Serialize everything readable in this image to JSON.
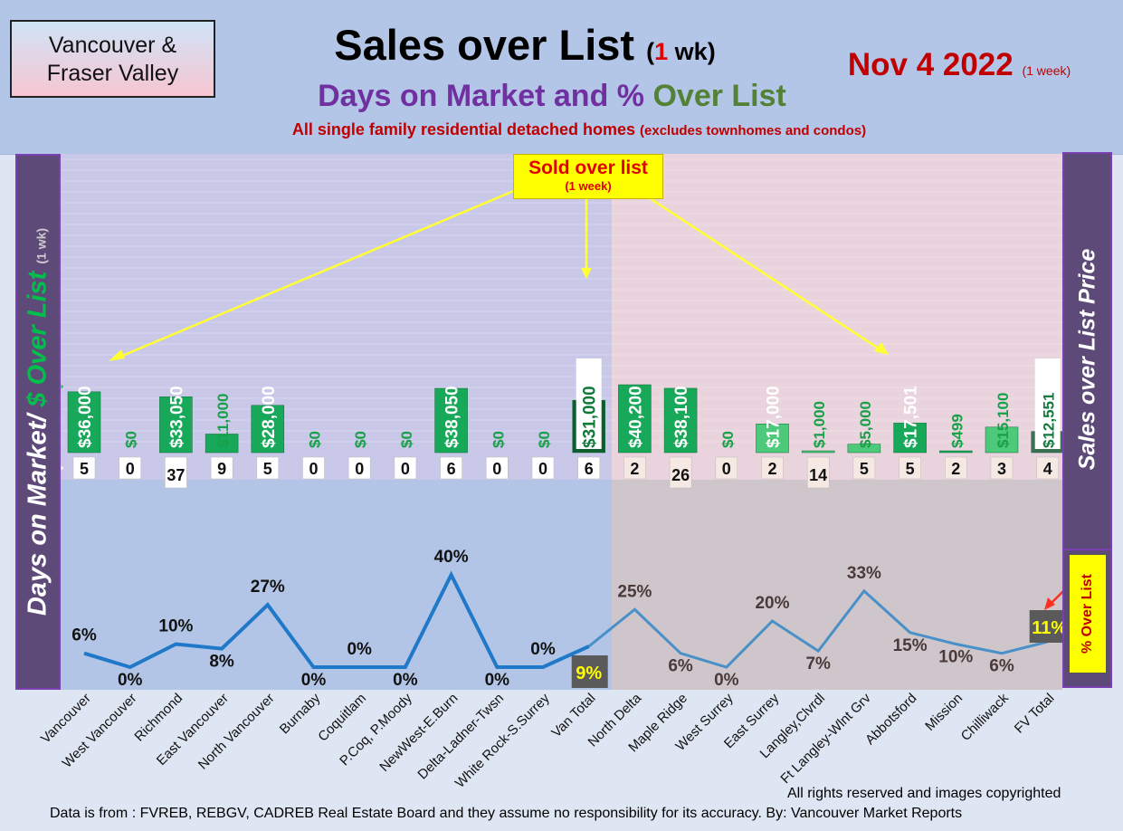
{
  "header": {
    "region_line1": "Vancouver &",
    "region_line2": "Fraser Valley",
    "title_main": "Sales over List ",
    "title_paren_open": "(",
    "title_num": "1",
    "title_paren_close": " wk)",
    "subtitle_part1": "Days on Market and % ",
    "subtitle_part2": "Over List",
    "subtitle2_main": "All single family residential detached homes ",
    "subtitle2_small": "(excludes townhomes and condos)",
    "date": "Nov 4  2022 ",
    "date_small": "(1 week)"
  },
  "side": {
    "left_part1": "Days on Market/ ",
    "left_part2": "$ Over List ",
    "left_small": "(1 wk)",
    "right_label": "Sales over List Price",
    "pct_label": "% Over List"
  },
  "callout": {
    "line1": "Sold over list",
    "line2": "(1 week)"
  },
  "footer": {
    "rights": "All rights reserved and  images copyrighted",
    "source": "Data is from : FVREB, REBGV, CADREB Real Estate Board and they assume no responsibility for its accuracy. By: Vancouver Market Reports"
  },
  "colors": {
    "bar_green": "#18a85a",
    "bar_dark": "#0f5c2e",
    "bar_fv_light": "#4cc97a",
    "line_van": "#1f78c8",
    "line_fv": "#4a90c8",
    "van_bg": "#c9c8e8",
    "fv_bg": "#e9d3dd"
  },
  "chart_data": {
    "type": "bar+line",
    "categories": [
      "Vancouver",
      "West Vancouver",
      "Richmond",
      "East Vancouver",
      "North Vancouver",
      "Burnaby",
      "Coquitlam",
      "P.Coq, P.Moody",
      "NewWest-E.Burn",
      "Delta-Ladner-Twsn",
      "White Rock-S.Surrey",
      "Van Total",
      "North Delta",
      "Maple Ridge",
      "West Surrey",
      "East Surrey",
      "Langley,Clvrdl",
      "Ft Langley-Wlnt Grv",
      "Abbotsford",
      "Mission",
      "Chilliwack",
      "FV Total"
    ],
    "series": [
      {
        "name": "$ Over List",
        "values": [
          36000,
          0,
          33050,
          11000,
          28000,
          0,
          0,
          0,
          38050,
          0,
          0,
          31000,
          40200,
          38100,
          0,
          17000,
          1000,
          5000,
          17501,
          499,
          15100,
          12551
        ]
      },
      {
        "name": "Days on Market",
        "values": [
          5,
          0,
          37,
          9,
          5,
          0,
          0,
          0,
          6,
          0,
          0,
          6,
          2,
          26,
          0,
          2,
          14,
          5,
          5,
          2,
          3,
          4
        ]
      },
      {
        "name": "% Over List",
        "values": [
          6,
          0,
          10,
          8,
          27,
          0,
          0,
          0,
          40,
          0,
          0,
          9,
          25,
          6,
          0,
          20,
          7,
          33,
          15,
          10,
          6,
          11
        ]
      }
    ],
    "dollar_labels": [
      "$36,000",
      "$0",
      "$33,050",
      "$11,000",
      "$28,000",
      "$0",
      "$0",
      "$0",
      "$38,050",
      "$0",
      "$0",
      "$31,000",
      "$40,200",
      "$38,100",
      "$0",
      "$17,000",
      "$1,000",
      "$5,000",
      "$17,501",
      "$499",
      "$15,100",
      "$12,551"
    ],
    "dom_labels": [
      "5",
      "0",
      "37",
      "9",
      "5",
      "0",
      "0",
      "0",
      "6",
      "0",
      "0",
      "6",
      "2",
      "26",
      "0",
      "2",
      "14",
      "5",
      "5",
      "2",
      "3",
      "4"
    ],
    "pct_labels": [
      "6%",
      "0%",
      "10%",
      "8%",
      "27%",
      "0%",
      "0%",
      "0%",
      "40%",
      "0%",
      "0%",
      "9%",
      "25%",
      "6%",
      "0%",
      "20%",
      "7%",
      "33%",
      "15%",
      "10%",
      "6%",
      "11%"
    ]
  }
}
